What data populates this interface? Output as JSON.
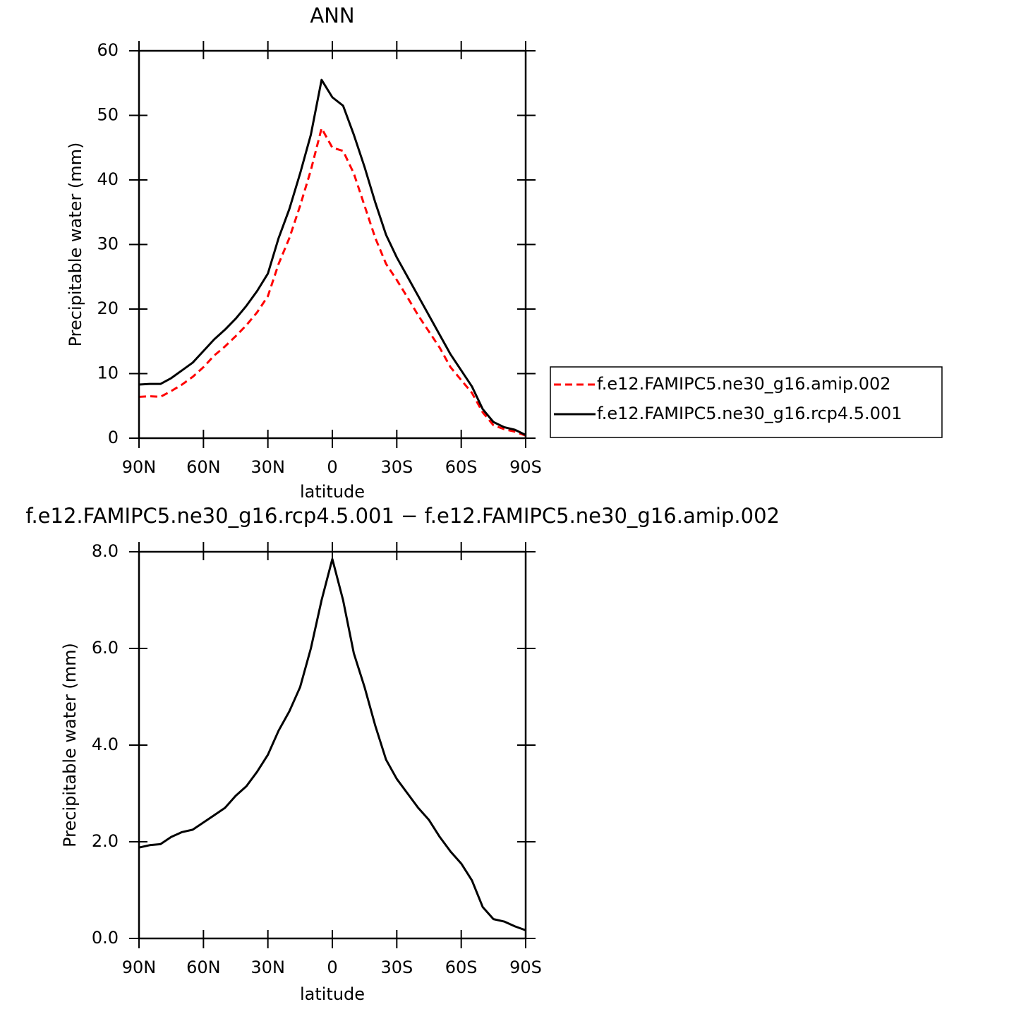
{
  "chart_data": [
    {
      "type": "line",
      "title": "ANN",
      "xlabel": "latitude",
      "ylabel": "Precipitable water (mm)",
      "x": [
        90,
        85,
        80,
        75,
        70,
        65,
        60,
        55,
        50,
        45,
        40,
        35,
        30,
        25,
        20,
        15,
        10,
        5,
        0,
        -5,
        -10,
        -15,
        -20,
        -25,
        -30,
        -35,
        -40,
        -45,
        -50,
        -55,
        -60,
        -65,
        -70,
        -75,
        -80,
        -85,
        -90
      ],
      "series": [
        {
          "name": "f.e12.FAMIPC5.ne30_g16.amip.002",
          "color": "#ff0000",
          "line_style": "dashed",
          "values": [
            6.4,
            6.5,
            6.4,
            7.3,
            8.3,
            9.5,
            11,
            12.8,
            14.2,
            15.8,
            17.5,
            19.5,
            22,
            27,
            31,
            36,
            41.5,
            48,
            45,
            44.5,
            41,
            36,
            31,
            27,
            24.5,
            21.8,
            19,
            16.5,
            14,
            11,
            9,
            7,
            4,
            2,
            1.4,
            1,
            0.4
          ]
        },
        {
          "name": "f.e12.FAMIPC5.ne30_g16.rcp4.5.001",
          "color": "#000000",
          "line_style": "solid",
          "values": [
            8.3,
            8.4,
            8.4,
            9.3,
            10.5,
            11.7,
            13.5,
            15.3,
            16.8,
            18.5,
            20.5,
            22.8,
            25.5,
            31,
            35.5,
            41,
            47,
            55.5,
            52.8,
            51.5,
            47,
            42,
            36.5,
            31.5,
            28,
            25,
            22,
            19,
            16,
            13,
            10.5,
            8,
            4.5,
            2.5,
            1.7,
            1.3,
            0.5
          ]
        }
      ],
      "xlim": [
        90,
        -90
      ],
      "xticks": [
        {
          "value": 90,
          "label": "90N"
        },
        {
          "value": 60,
          "label": "60N"
        },
        {
          "value": 30,
          "label": "30N"
        },
        0,
        {
          "value": -30,
          "label": "30S"
        },
        {
          "value": -60,
          "label": "60S"
        },
        {
          "value": -90,
          "label": "90S"
        }
      ],
      "ylim": [
        0,
        60
      ],
      "yticks": [
        0,
        10,
        20,
        30,
        40,
        50,
        60
      ],
      "legend": "right"
    },
    {
      "type": "line",
      "title": "f.e12.FAMIPC5.ne30_g16.rcp4.5.001 − f.e12.FAMIPC5.ne30_g16.amip.002",
      "xlabel": "latitude",
      "ylabel": "Precipitable water (mm)",
      "x": [
        90,
        85,
        80,
        75,
        70,
        65,
        60,
        55,
        50,
        45,
        40,
        35,
        30,
        25,
        20,
        15,
        10,
        5,
        0,
        -5,
        -10,
        -15,
        -20,
        -25,
        -30,
        -35,
        -40,
        -45,
        -50,
        -55,
        -60,
        -65,
        -70,
        -75,
        -80,
        -85,
        -90
      ],
      "color": "#000000",
      "values": [
        1.88,
        1.93,
        1.95,
        2.1,
        2.2,
        2.25,
        2.4,
        2.55,
        2.7,
        2.95,
        3.15,
        3.45,
        3.8,
        4.3,
        4.7,
        5.2,
        6.0,
        7.0,
        7.85,
        7.0,
        5.9,
        5.2,
        4.4,
        3.7,
        3.3,
        3.0,
        2.7,
        2.45,
        2.1,
        1.8,
        1.55,
        1.2,
        0.65,
        0.4,
        0.35,
        0.25,
        0.17
      ],
      "xlim": [
        90,
        -90
      ],
      "xticks": [
        {
          "value": 90,
          "label": "90N"
        },
        {
          "value": 60,
          "label": "60N"
        },
        {
          "value": 30,
          "label": "30N"
        },
        0,
        {
          "value": -30,
          "label": "30S"
        },
        {
          "value": -60,
          "label": "60S"
        },
        {
          "value": -90,
          "label": "90S"
        }
      ],
      "ylim": [
        0,
        8
      ],
      "yticks": [
        {
          "value": 0,
          "label": "0.0"
        },
        {
          "value": 2,
          "label": "2.0"
        },
        {
          "value": 4,
          "label": "4.0"
        },
        {
          "value": 6,
          "label": "6.0"
        },
        {
          "value": 8,
          "label": "8.0"
        }
      ]
    }
  ]
}
